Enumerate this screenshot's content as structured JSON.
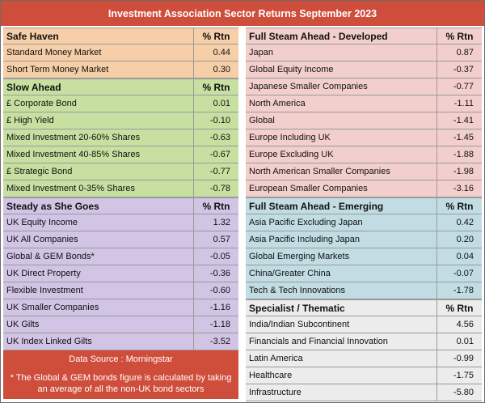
{
  "title": "Investment Association Sector Returns September 2023",
  "sections": {
    "safe_haven": {
      "heading": "Safe Haven",
      "col": "% Rtn",
      "rows": [
        {
          "name": "Standard Money Market",
          "value": "0.44"
        },
        {
          "name": "Short Term Money Market",
          "value": "0.30"
        }
      ]
    },
    "slow_ahead": {
      "heading": "Slow Ahead",
      "col": "% Rtn",
      "rows": [
        {
          "name": "£ Corporate Bond",
          "value": "0.01"
        },
        {
          "name": "£ High Yield",
          "value": "-0.10"
        },
        {
          "name": "Mixed Investment 20-60% Shares",
          "value": "-0.63"
        },
        {
          "name": "Mixed Investment 40-85% Shares",
          "value": "-0.67"
        },
        {
          "name": "£ Strategic Bond",
          "value": "-0.77"
        },
        {
          "name": "Mixed Investment 0-35% Shares",
          "value": "-0.78"
        }
      ]
    },
    "steady": {
      "heading": "Steady as She Goes",
      "col": "% Rtn",
      "rows": [
        {
          "name": "UK Equity Income",
          "value": "1.32"
        },
        {
          "name": "UK All Companies",
          "value": "0.57"
        },
        {
          "name": "Global & GEM Bonds*",
          "value": "-0.05"
        },
        {
          "name": "UK Direct Property",
          "value": "-0.36"
        },
        {
          "name": "Flexible Investment",
          "value": "-0.60"
        },
        {
          "name": "UK Smaller Companies",
          "value": "-1.16"
        },
        {
          "name": "UK Gilts",
          "value": "-1.18"
        },
        {
          "name": "UK Index Linked Gilts",
          "value": "-3.52"
        }
      ]
    },
    "developed": {
      "heading": "Full Steam Ahead - Developed",
      "col": "% Rtn",
      "rows": [
        {
          "name": "Japan",
          "value": "0.87"
        },
        {
          "name": "Global Equity Income",
          "value": "-0.37"
        },
        {
          "name": "Japanese Smaller Companies",
          "value": "-0.77"
        },
        {
          "name": "North America",
          "value": "-1.11"
        },
        {
          "name": "Global",
          "value": "-1.41"
        },
        {
          "name": "Europe Including UK",
          "value": "-1.45"
        },
        {
          "name": "Europe Excluding UK",
          "value": "-1.88"
        },
        {
          "name": "North American Smaller Companies",
          "value": "-1.98"
        },
        {
          "name": "European Smaller Companies",
          "value": "-3.16"
        }
      ]
    },
    "emerging": {
      "heading": "Full Steam Ahead - Emerging",
      "col": "% Rtn",
      "rows": [
        {
          "name": "Asia Pacific Excluding Japan",
          "value": "0.42"
        },
        {
          "name": "Asia Pacific Including Japan",
          "value": "0.20"
        },
        {
          "name": "Global Emerging Markets",
          "value": "0.04"
        },
        {
          "name": "China/Greater China",
          "value": "-0.07"
        },
        {
          "name": "Tech & Tech Innovations",
          "value": "-1.78"
        }
      ]
    },
    "specialist": {
      "heading": "Specialist / Thematic",
      "col": "% Rtn",
      "rows": [
        {
          "name": "India/Indian Subcontinent",
          "value": "4.56"
        },
        {
          "name": "Financials and Financial Innovation",
          "value": "0.01"
        },
        {
          "name": "Latin America",
          "value": "-0.99"
        },
        {
          "name": "Healthcare",
          "value": "-1.75"
        },
        {
          "name": "Infrastructure",
          "value": "-5.80"
        }
      ]
    }
  },
  "footer": {
    "source": "Data Source : Morningstar",
    "note": "* The Global & GEM bonds figure is calculated by taking an average of all the non-UK bond sectors"
  },
  "colors": {
    "title_bar": "#ce4d3b",
    "safe_haven": "#f6cfa9",
    "slow_ahead": "#c7dfa0",
    "steady": "#d2c4e4",
    "developed": "#f2cfcd",
    "emerging": "#c1dde3",
    "specialist": "#ececec"
  }
}
